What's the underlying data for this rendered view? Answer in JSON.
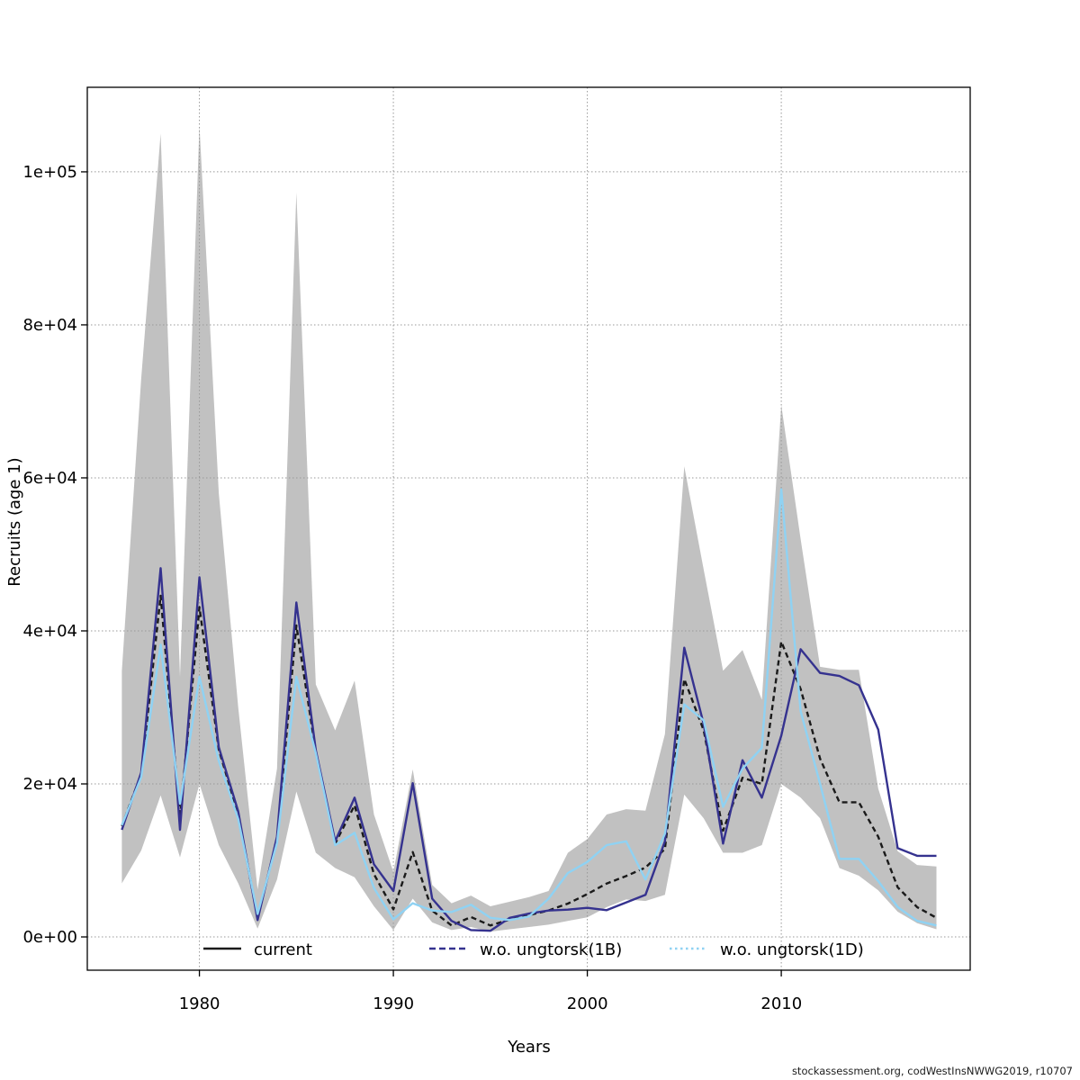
{
  "watermark": "stockassessment.org, codWestInsNWWG2019, r10707",
  "chart_data": {
    "type": "line",
    "title": "",
    "xlabel": "Years",
    "ylabel": "Recruits (age 1)",
    "grid": true,
    "legend_position": "bottom-inside",
    "xlim": [
      1974.22,
      2019.74
    ],
    "ylim": [
      -4350,
      111050
    ],
    "xtick_values": [
      1980,
      1990,
      2000,
      2010
    ],
    "xtick_labels": [
      "1980",
      "1990",
      "2000",
      "2010"
    ],
    "ytick_values": [
      0,
      20000,
      40000,
      60000,
      80000,
      100000
    ],
    "ytick_labels": [
      "0e+00",
      "2e+04",
      "4e+04",
      "6e+04",
      "8e+04",
      "1e+05"
    ],
    "grid_color": "#999999",
    "years": [
      1976,
      1977,
      1978,
      1979,
      1980,
      1981,
      1982,
      1983,
      1984,
      1985,
      1986,
      1987,
      1988,
      1989,
      1990,
      1991,
      1992,
      1993,
      1994,
      1995,
      1996,
      1997,
      1998,
      1999,
      2000,
      2001,
      2002,
      2003,
      2004,
      2005,
      2006,
      2007,
      2008,
      2009,
      2010,
      2011,
      2012,
      2013,
      2014,
      2015,
      2016,
      2017,
      2018
    ],
    "band": {
      "name": "current 95% confidence band",
      "color": "#c1c1c1",
      "upper": [
        34800,
        73000,
        105000,
        34000,
        106000,
        58000,
        30000,
        6200,
        22000,
        97300,
        33000,
        27000,
        33500,
        16000,
        8500,
        21900,
        6800,
        4400,
        5400,
        4000,
        4600,
        5200,
        6000,
        11000,
        12800,
        16000,
        16700,
        16500,
        26500,
        61500,
        48000,
        34800,
        37500,
        31000,
        69500,
        52000,
        35300,
        34900,
        34900,
        19400,
        11200,
        9400,
        9200
      ],
      "lower": [
        7000,
        11300,
        18500,
        10400,
        20000,
        12000,
        7000,
        1100,
        7500,
        19000,
        11000,
        9000,
        7800,
        4000,
        900,
        5000,
        1900,
        900,
        1300,
        700,
        1000,
        1300,
        1600,
        2100,
        2550,
        3900,
        4900,
        4700,
        5500,
        18600,
        15500,
        11000,
        11000,
        12000,
        20000,
        18200,
        15500,
        9000,
        8000,
        6100,
        3300,
        1800,
        1000
      ]
    },
    "series": [
      {
        "name": "current",
        "color": "#1a1a1a",
        "plot_style": "dashed",
        "legend_style": "solid",
        "values": [
          14500,
          21300,
          44600,
          15500,
          43100,
          24500,
          16000,
          2500,
          12800,
          40700,
          24200,
          12200,
          17200,
          8200,
          3600,
          11100,
          3450,
          1500,
          2600,
          1500,
          2270,
          2860,
          3450,
          4350,
          5600,
          6980,
          7960,
          9060,
          11500,
          33700,
          27000,
          13900,
          20800,
          20000,
          38600,
          32400,
          23300,
          17600,
          17600,
          13100,
          6500,
          3900,
          2500
        ]
      },
      {
        "name": "w.o. ungtorsk(1B)",
        "color": "#35328f",
        "plot_style": "solid",
        "legend_style": "dashed",
        "values": [
          14000,
          21500,
          48200,
          14000,
          47000,
          24800,
          16400,
          2200,
          13100,
          43700,
          24400,
          12500,
          18200,
          9500,
          6000,
          20100,
          5000,
          2100,
          900,
          800,
          2500,
          3050,
          3450,
          3570,
          3800,
          3500,
          4500,
          5500,
          12500,
          37800,
          27800,
          12200,
          23100,
          18200,
          26300,
          37600,
          34500,
          34100,
          32900,
          27100,
          11600,
          10600,
          10600
        ]
      },
      {
        "name": "w.o. ungtorsk(1D)",
        "color": "#8fd2f3",
        "plot_style": "solid",
        "legend_style": "dotted",
        "values": [
          14600,
          20900,
          38200,
          17400,
          34000,
          23000,
          15400,
          3000,
          12300,
          34000,
          24000,
          12000,
          13600,
          6400,
          2300,
          4400,
          3450,
          3250,
          4200,
          2500,
          2200,
          2670,
          5000,
          8350,
          9800,
          12000,
          12500,
          7500,
          13500,
          30400,
          28300,
          17000,
          22000,
          24700,
          58500,
          29500,
          20000,
          10200,
          10200,
          7300,
          3900,
          2100,
          1500
        ]
      }
    ]
  }
}
